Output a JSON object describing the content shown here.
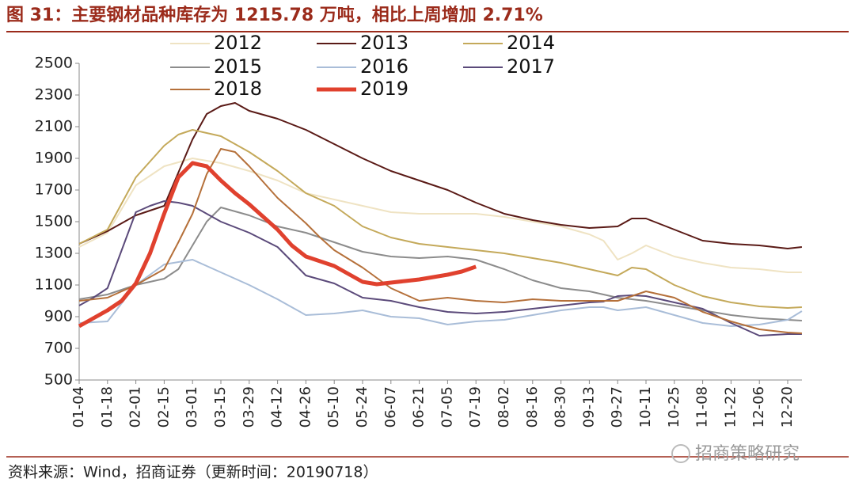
{
  "chart_data": {
    "type": "line",
    "title": "图 31：主要钢材品种库存为 1215.78 万吨，相比上周增加 2.71%",
    "categories": [
      "01-04",
      null,
      "01-18",
      null,
      "02-01",
      null,
      "02-15",
      null,
      "03-01",
      null,
      "03-15",
      null,
      "03-29",
      null,
      "04-12",
      null,
      "04-26",
      null,
      "05-10",
      null,
      "05-24",
      null,
      "06-07",
      null,
      "06-21",
      null,
      "07-05",
      null,
      "07-19",
      null,
      "08-02",
      null,
      "08-16",
      null,
      "08-30",
      null,
      "09-13",
      null,
      "09-27",
      null,
      "10-11",
      null,
      "10-25",
      null,
      "11-08",
      null,
      "11-22",
      null,
      "12-06",
      null,
      "12-20",
      null
    ],
    "series": [
      {
        "name": "2012",
        "color": "#efe3c3",
        "values": [
          1340,
          1385,
          1430,
          1580,
          1730,
          1790,
          1850,
          1875,
          1900,
          1885,
          1870,
          1845,
          1820,
          1790,
          1760,
          1720,
          1680,
          1660,
          1640,
          1620,
          1600,
          1580,
          1560,
          1555,
          1550,
          1550,
          1550,
          1550,
          1550,
          1540,
          1530,
          1515,
          1500,
          1485,
          1470,
          1445,
          1420,
          1380,
          1260,
          1300,
          1350,
          1315,
          1280,
          1260,
          1240,
          1225,
          1210,
          1205,
          1200,
          1190,
          1180,
          1180
        ]
      },
      {
        "name": "2013",
        "color": "#5a1a16",
        "values": [
          1360,
          1400,
          1440,
          1490,
          1540,
          1570,
          1600,
          1810,
          2020,
          2180,
          2230,
          2250,
          2200,
          2175,
          2150,
          2115,
          2080,
          2035,
          1990,
          1945,
          1900,
          1860,
          1820,
          1790,
          1760,
          1730,
          1700,
          1660,
          1620,
          1585,
          1550,
          1530,
          1510,
          1495,
          1480,
          1470,
          1460,
          1465,
          1470,
          1520,
          1520,
          1485,
          1450,
          1415,
          1380,
          1370,
          1360,
          1355,
          1350,
          1340,
          1330,
          1340
        ]
      },
      {
        "name": "2014",
        "color": "#c4a95a",
        "values": [
          1360,
          1405,
          1450,
          1615,
          1780,
          1880,
          1980,
          2050,
          2080,
          2060,
          2040,
          1990,
          1940,
          1880,
          1820,
          1750,
          1680,
          1640,
          1600,
          1535,
          1470,
          1435,
          1400,
          1380,
          1360,
          1350,
          1340,
          1330,
          1320,
          1310,
          1300,
          1285,
          1270,
          1255,
          1240,
          1220,
          1200,
          1180,
          1160,
          1210,
          1200,
          1150,
          1100,
          1065,
          1030,
          1010,
          990,
          978,
          965,
          960,
          955,
          960
        ]
      },
      {
        "name": "2015",
        "color": "#8c8c8c",
        "values": [
          1010,
          1025,
          1040,
          1070,
          1100,
          1120,
          1140,
          1200,
          1350,
          1500,
          1590,
          1565,
          1540,
          1505,
          1470,
          1450,
          1430,
          1400,
          1370,
          1340,
          1310,
          1295,
          1280,
          1275,
          1270,
          1275,
          1280,
          1270,
          1260,
          1230,
          1200,
          1165,
          1130,
          1105,
          1080,
          1070,
          1060,
          1040,
          1020,
          1010,
          1000,
          985,
          970,
          955,
          940,
          925,
          910,
          900,
          890,
          885,
          880,
          875
        ]
      },
      {
        "name": "2016",
        "color": "#a9bdd8",
        "values": [
          860,
          865,
          870,
          985,
          1100,
          1165,
          1230,
          1245,
          1260,
          1220,
          1180,
          1140,
          1100,
          1055,
          1010,
          960,
          910,
          915,
          920,
          930,
          940,
          920,
          900,
          895,
          890,
          870,
          850,
          860,
          870,
          875,
          880,
          895,
          910,
          925,
          940,
          950,
          960,
          960,
          940,
          950,
          960,
          935,
          910,
          885,
          860,
          850,
          840,
          845,
          850,
          865,
          880,
          935
        ]
      },
      {
        "name": "2017",
        "color": "#5b4a7a",
        "values": [
          970,
          1020,
          1080,
          1320,
          1560,
          1600,
          1630,
          1620,
          1600,
          1550,
          1500,
          1465,
          1430,
          1385,
          1340,
          1250,
          1160,
          1135,
          1110,
          1065,
          1020,
          1010,
          1000,
          980,
          960,
          945,
          930,
          925,
          920,
          925,
          930,
          940,
          950,
          960,
          970,
          980,
          990,
          995,
          1030,
          1035,
          1030,
          1010,
          990,
          970,
          950,
          905,
          860,
          820,
          780,
          785,
          790,
          790
        ]
      },
      {
        "name": "2018",
        "color": "#b5703a",
        "values": [
          1000,
          1010,
          1020,
          1060,
          1100,
          1150,
          1200,
          1370,
          1550,
          1800,
          1960,
          1940,
          1850,
          1750,
          1650,
          1570,
          1490,
          1400,
          1320,
          1265,
          1210,
          1145,
          1080,
          1040,
          1000,
          1010,
          1020,
          1010,
          1000,
          995,
          990,
          1000,
          1010,
          1005,
          1000,
          1000,
          1000,
          1000,
          1000,
          1030,
          1060,
          1040,
          1020,
          975,
          930,
          900,
          870,
          845,
          820,
          810,
          800,
          795
        ]
      },
      {
        "name": "2019",
        "color": "#e0412e",
        "values": [
          840,
          890,
          940,
          1000,
          1110,
          1300,
          1550,
          1780,
          1870,
          1850,
          1760,
          1680,
          1610,
          1530,
          1450,
          1350,
          1280,
          1250,
          1220,
          1170,
          1120,
          1105,
          1115,
          1125,
          1135,
          1150,
          1165,
          1185,
          1216,
          null,
          null,
          null,
          null,
          null,
          null,
          null,
          null,
          null,
          null,
          null,
          null,
          null,
          null,
          null,
          null,
          null,
          null,
          null,
          null,
          null,
          null,
          null
        ]
      }
    ],
    "ylim": [
      500,
      2500
    ],
    "yticks": [
      500,
      700,
      900,
      1100,
      1300,
      1500,
      1700,
      1900,
      2100,
      2300,
      2500
    ],
    "grid": false
  },
  "source": "资料来源：Wind，招商证券（更新时间：20190718）",
  "watermark": "招商策略研究"
}
